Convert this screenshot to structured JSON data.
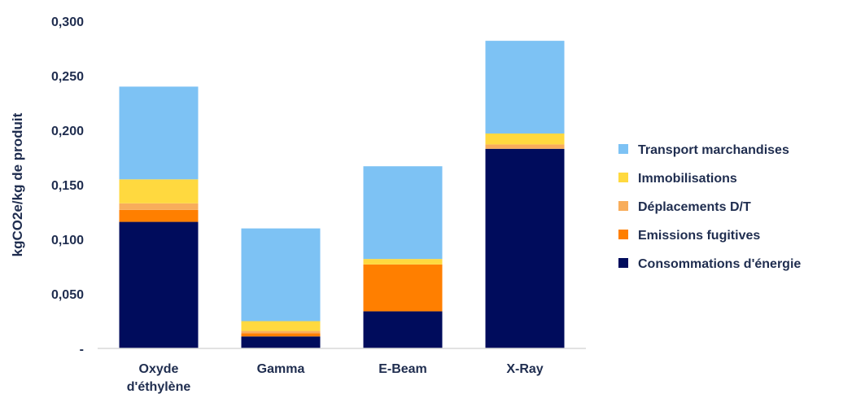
{
  "chart_data": {
    "type": "bar",
    "stacked": true,
    "title": "",
    "xlabel": "",
    "ylabel": "kgCO2e/kg de produit",
    "ylim": [
      0,
      0.3
    ],
    "yticks": [
      0,
      0.05,
      0.1,
      0.15,
      0.2,
      0.25,
      0.3
    ],
    "ytick_labels": [
      "-",
      "0,050",
      "0,100",
      "0,150",
      "0,200",
      "0,250",
      "0,300"
    ],
    "grid": false,
    "legend_position": "right",
    "categories": [
      [
        "Oxyde",
        "d'éthylène"
      ],
      [
        "Gamma"
      ],
      [
        "E-Beam"
      ],
      [
        "X-Ray"
      ]
    ],
    "series": [
      {
        "name": "Consommations d'énergie",
        "color": "#000c5c",
        "values": [
          0.116,
          0.011,
          0.034,
          0.183
        ]
      },
      {
        "name": "Emissions fugitives",
        "color": "#ff7f00",
        "values": [
          0.011,
          0.003,
          0.043,
          0.0
        ]
      },
      {
        "name": "Déplacements D/T",
        "color": "#f8ad5b",
        "values": [
          0.006,
          0.002,
          0.0,
          0.004
        ]
      },
      {
        "name": "Immobilisations",
        "color": "#ffd93f",
        "values": [
          0.022,
          0.009,
          0.005,
          0.01
        ]
      },
      {
        "name": "Transport marchandises",
        "color": "#7dc2f4",
        "values": [
          0.085,
          0.085,
          0.085,
          0.085
        ]
      }
    ],
    "legend_order": [
      "Transport marchandises",
      "Immobilisations",
      "Déplacements D/T",
      "Emissions fugitives",
      "Consommations d'énergie"
    ]
  },
  "colors": {
    "axis": "#d9d9d9",
    "text": "#1f2d4f"
  }
}
